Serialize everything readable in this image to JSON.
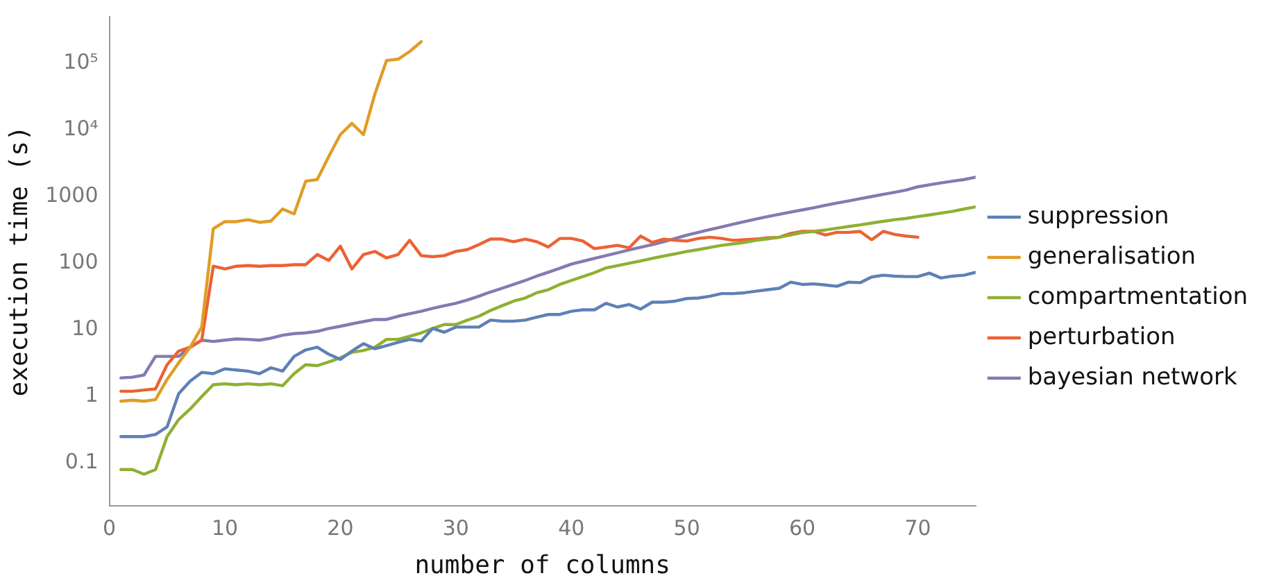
{
  "chart_data": {
    "type": "line",
    "xlabel": "number of columns",
    "ylabel": "execution time (s)",
    "log": "y",
    "grid": false,
    "legend": "right",
    "marker": "none",
    "line_style": "solid",
    "xlim": [
      0,
      75
    ],
    "xticks": [
      0,
      10,
      20,
      30,
      40,
      50,
      60,
      70
    ],
    "ylim": [
      0.023,
      500000
    ],
    "yticks": [
      0.1,
      1,
      10,
      100,
      1000,
      {
        "value": 10000,
        "label": "10⁴"
      },
      {
        "value": 100000,
        "label": "10⁵"
      }
    ],
    "x": [
      1,
      2,
      3,
      4,
      5,
      6,
      7,
      8,
      9,
      10,
      11,
      12,
      13,
      14,
      15,
      16,
      17,
      18,
      19,
      20,
      21,
      22,
      23,
      24,
      25,
      26,
      27,
      28,
      29,
      30,
      31,
      32,
      33,
      34,
      35,
      36,
      37,
      38,
      39,
      40,
      41,
      42,
      43,
      44,
      45,
      46,
      47,
      48,
      49,
      50,
      51,
      52,
      53,
      54,
      55,
      56,
      57,
      58,
      59,
      60,
      61,
      62,
      63,
      64,
      65,
      66,
      67,
      68,
      69,
      70,
      71,
      72,
      73,
      74,
      75
    ],
    "series": [
      {
        "name": "suppression",
        "color": "#5e81b5",
        "values": [
          0.25,
          0.25,
          0.25,
          0.27,
          0.35,
          1.1,
          1.7,
          2.3,
          2.2,
          2.6,
          2.5,
          2.4,
          2.2,
          2.7,
          2.4,
          4,
          5,
          5.5,
          4.3,
          3.6,
          4.8,
          6.2,
          5.2,
          5.8,
          6.5,
          7.2,
          6.8,
          10.5,
          9.2,
          11,
          11,
          11,
          14,
          13.5,
          13.5,
          14,
          15.5,
          17,
          17,
          19,
          20,
          20,
          25,
          22,
          24,
          20.5,
          26,
          26,
          27,
          29.5,
          30,
          32,
          35,
          35,
          36,
          38,
          40,
          42,
          52,
          48,
          49,
          47,
          45,
          52,
          51,
          62,
          66,
          64,
          63,
          63,
          71,
          60,
          64,
          66,
          73
        ]
      },
      {
        "name": "generalisation",
        "color": "#e19c24",
        "values": [
          0.85,
          0.88,
          0.85,
          0.9,
          1.8,
          3.2,
          5.5,
          11,
          330,
          420,
          420,
          450,
          410,
          430,
          650,
          550,
          1700,
          1800,
          4000,
          8500,
          12500,
          8500,
          35000,
          110000,
          115000,
          150000,
          210000,
          null,
          null,
          null,
          null,
          null,
          null,
          null,
          null,
          null,
          null,
          null,
          null,
          null,
          null,
          null,
          null,
          null,
          null,
          null,
          null,
          null,
          null,
          null,
          null,
          null,
          null,
          null,
          null,
          null,
          null,
          null,
          null,
          null,
          null,
          null,
          null,
          null,
          null,
          null,
          null,
          null,
          null,
          null,
          null,
          null,
          null,
          null,
          null
        ]
      },
      {
        "name": "compartmentation",
        "color": "#8fb032",
        "values": [
          0.08,
          0.08,
          0.068,
          0.08,
          0.25,
          0.45,
          0.65,
          1,
          1.5,
          1.55,
          1.5,
          1.55,
          1.5,
          1.55,
          1.45,
          2.2,
          3,
          2.9,
          3.3,
          3.8,
          4.6,
          4.9,
          5.5,
          7.2,
          7.2,
          8,
          9,
          10.5,
          12,
          12,
          14,
          16,
          19.5,
          23,
          27,
          30,
          36,
          40,
          48,
          55,
          63,
          72,
          85,
          92,
          100,
          108,
          118,
          128,
          138,
          150,
          160,
          172,
          185,
          195,
          205,
          220,
          232,
          245,
          265,
          288,
          300,
          315,
          335,
          355,
          375,
          400,
          425,
          450,
          470,
          500,
          530,
          565,
          600,
          650,
          700
        ]
      },
      {
        "name": "perturbation",
        "color": "#eb6235",
        "values": [
          1.2,
          1.2,
          1.25,
          1.3,
          3,
          4.8,
          5.5,
          7,
          90,
          82,
          90,
          92,
          90,
          92,
          92,
          95,
          95,
          135,
          110,
          180,
          82,
          135,
          150,
          120,
          135,
          220,
          130,
          125,
          130,
          150,
          160,
          190,
          230,
          230,
          210,
          230,
          210,
          175,
          235,
          235,
          215,
          165,
          175,
          185,
          170,
          255,
          205,
          230,
          220,
          215,
          235,
          245,
          235,
          220,
          225,
          230,
          240,
          245,
          280,
          300,
          300,
          265,
          290,
          290,
          300,
          225,
          300,
          270,
          255,
          245,
          null,
          null,
          null,
          null,
          null
        ]
      },
      {
        "name": "bayesian network",
        "color": "#8778b3",
        "values": [
          1.9,
          1.95,
          2.1,
          4,
          4,
          4,
          5.5,
          7,
          6.7,
          7,
          7.3,
          7.2,
          7,
          7.5,
          8.3,
          8.8,
          9,
          9.5,
          10.5,
          11.3,
          12.3,
          13.3,
          14.3,
          14.3,
          16,
          17.5,
          19,
          21,
          23,
          25,
          28,
          32,
          37,
          42,
          48,
          55,
          64,
          73,
          84,
          97,
          107,
          118,
          130,
          143,
          158,
          173,
          190,
          210,
          235,
          263,
          290,
          320,
          350,
          385,
          420,
          460,
          500,
          540,
          585,
          630,
          680,
          740,
          800,
          860,
          930,
          1000,
          1080,
          1160,
          1250,
          1400,
          1500,
          1600,
          1700,
          1800,
          1950
        ]
      }
    ]
  }
}
